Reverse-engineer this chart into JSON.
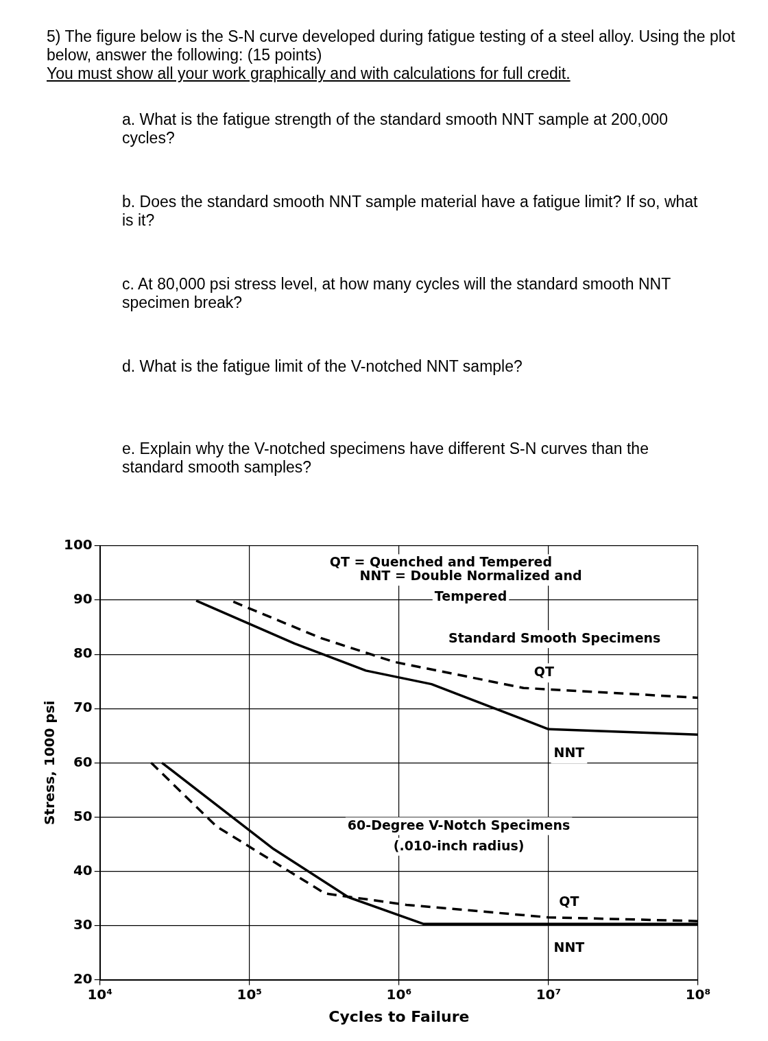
{
  "chart_data": {
    "type": "line",
    "title": "5) The figure below is the S-N curve developed during fatigue testing of a steel alloy. Using the plot below, answer the following: (15 points)",
    "subtitle": "You must show all your work graphically and with calculations for full credit.",
    "xlabel": "Cycles to Failure",
    "ylabel": "Stress, 1000 psi",
    "log": "x",
    "xlim": [
      10000,
      100000000
    ],
    "xticks": [
      {
        "value": 10000,
        "label": "10⁴"
      },
      {
        "value": 100000,
        "label": "10⁵"
      },
      {
        "value": 1000000,
        "label": "10⁶"
      },
      {
        "value": 10000000,
        "label": "10⁷"
      },
      {
        "value": 100000000,
        "label": "10⁸"
      }
    ],
    "ylim": [
      20,
      100
    ],
    "yticks": [
      20,
      30,
      40,
      50,
      60,
      70,
      80,
      90,
      100
    ],
    "grid": true,
    "legend": false,
    "series": [
      {
        "name": "QT",
        "color": "#000000",
        "line_style": "dashed",
        "x": [
          78000,
          300000,
          930000,
          6800000,
          100000000
        ],
        "values": [
          89.7,
          83,
          78.6,
          73.8,
          72
        ]
      },
      {
        "name": "NNT",
        "color": "#000000",
        "line_style": "solid",
        "x": [
          44000,
          200000,
          600000,
          1650000,
          10000000,
          100000000
        ],
        "values": [
          89.9,
          82,
          77,
          74.5,
          66.2,
          65.2
        ]
      },
      {
        "name": "QT",
        "color": "#000000",
        "line_style": "dashed",
        "x": [
          22000,
          60000,
          320000,
          1120000,
          10000000,
          100000000
        ],
        "values": [
          60,
          48.3,
          35.9,
          33.8,
          31.5,
          30.8
        ]
      },
      {
        "name": "NNT",
        "color": "#000000",
        "line_style": "solid",
        "x": [
          26000,
          145000,
          460000,
          1450000,
          10000000,
          100000000
        ],
        "values": [
          60,
          44.1,
          35.2,
          30.3,
          30.3,
          30.3
        ]
      }
    ],
    "annotations": [
      "a. What is the fatigue strength of the standard smooth NNT sample at 200,000 cycles?",
      "b. Does the standard smooth NNT sample material have a fatigue limit? If so, what is it?",
      "c. At 80,000 psi stress level, at how many cycles will the standard smooth NNT specimen break?",
      "d. What is the fatigue limit of the V-notched NNT sample?",
      "e. Explain why the V-notched specimens have  different S-N curves than the standard smooth samples?",
      "QT = Quenched and Tempered",
      "NNT = Double Normalized and Tempered",
      "Standard Smooth Specimens",
      "60-Degree V-Notch Specimens (.010-inch radius)"
    ]
  }
}
